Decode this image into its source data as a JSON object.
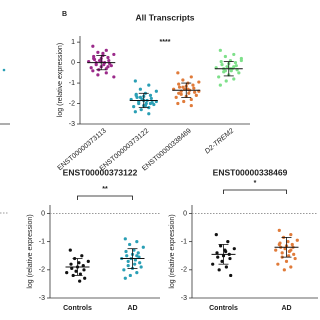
{
  "chart_data": [
    {
      "type": "strip",
      "panel_label": "B",
      "title": "All Transcripts",
      "ylabel": "log (relative expression)",
      "annotation": "****",
      "categories": [
        "ENST00000373113",
        "ENST00000373122",
        "ENST00000338469",
        "D2-TREM2"
      ],
      "colors": [
        "#9b2a8a",
        "#2a9fb5",
        "#e07b3a",
        "#7ee08a"
      ],
      "values": [
        [
          0.8,
          0.6,
          0.5,
          0.4,
          0.35,
          0.3,
          0.25,
          0.2,
          0.15,
          0.1,
          0.1,
          0.05,
          0.0,
          0.0,
          -0.05,
          -0.1,
          -0.1,
          -0.15,
          -0.2,
          -0.25,
          -0.3,
          -0.35,
          -0.4,
          -0.5,
          -0.6,
          -0.7,
          0.45,
          0.2,
          -0.2,
          0.05
        ],
        [
          -0.9,
          -1.1,
          -1.3,
          -1.4,
          -1.5,
          -1.55,
          -1.6,
          -1.65,
          -1.7,
          -1.75,
          -1.8,
          -1.8,
          -1.85,
          -1.9,
          -1.95,
          -2.0,
          -2.0,
          -2.05,
          -2.1,
          -2.15,
          -2.2,
          -2.3,
          -2.4,
          -2.5,
          -1.7,
          -1.9,
          -2.1,
          -1.6,
          -2.0,
          -1.85
        ],
        [
          -0.5,
          -0.7,
          -0.85,
          -0.95,
          -1.0,
          -1.05,
          -1.1,
          -1.15,
          -1.2,
          -1.25,
          -1.3,
          -1.3,
          -1.35,
          -1.4,
          -1.45,
          -1.5,
          -1.55,
          -1.6,
          -1.65,
          -1.7,
          -1.8,
          -1.9,
          -2.0,
          -2.1,
          -1.2,
          -1.4,
          -1.3,
          -1.5
        ],
        [
          0.6,
          0.4,
          0.3,
          0.2,
          0.1,
          0.05,
          0.0,
          -0.05,
          -0.1,
          -0.15,
          -0.2,
          -0.25,
          -0.3,
          -0.3,
          -0.35,
          -0.4,
          -0.45,
          -0.5,
          -0.6,
          -0.7,
          -0.8,
          -0.9,
          -1.1,
          -0.2,
          -0.4,
          0.1,
          -0.3
        ]
      ],
      "means": [
        0.0,
        -1.85,
        -1.35,
        -0.3
      ],
      "sds": [
        0.35,
        0.35,
        0.35,
        0.35
      ],
      "ylim": [
        -3,
        1.3
      ],
      "yticks": [
        1,
        0,
        -1,
        -2,
        -3
      ]
    },
    {
      "type": "strip",
      "title": "ENST00000373122",
      "ylabel": "log (relative expression)",
      "annotation": "**",
      "categories": [
        "Controls",
        "AD"
      ],
      "colors": [
        "#111111",
        "#2a9fb5"
      ],
      "values": [
        [
          -1.3,
          -1.5,
          -1.6,
          -1.7,
          -1.75,
          -1.8,
          -1.85,
          -1.9,
          -1.95,
          -2.0,
          -2.05,
          -2.1,
          -2.15,
          -2.2,
          -2.3,
          -2.4
        ],
        [
          -0.9,
          -1.0,
          -1.1,
          -1.2,
          -1.3,
          -1.35,
          -1.4,
          -1.45,
          -1.5,
          -1.55,
          -1.6,
          -1.6,
          -1.65,
          -1.7,
          -1.75,
          -1.8,
          -1.85,
          -1.9,
          -1.95,
          -2.0,
          -2.1,
          -2.2,
          -2.3,
          -1.5
        ]
      ],
      "means": [
        -1.9,
        -1.6
      ],
      "sds": [
        0.3,
        0.35
      ],
      "ylim": [
        -3,
        0.3
      ],
      "yticks": [
        0,
        -1,
        -2,
        -3
      ]
    },
    {
      "type": "strip",
      "title": "ENST00000338469",
      "ylabel": "log (relative expression)",
      "annotation": "*",
      "categories": [
        "Controls",
        "AD"
      ],
      "colors": [
        "#111111",
        "#e07b3a"
      ],
      "values": [
        [
          -0.75,
          -1.0,
          -1.15,
          -1.25,
          -1.3,
          -1.4,
          -1.45,
          -1.5,
          -1.55,
          -1.6,
          -1.7,
          -1.8,
          -1.9,
          -2.0,
          -2.2,
          -1.35
        ],
        [
          -0.6,
          -0.75,
          -0.85,
          -0.95,
          -1.0,
          -1.05,
          -1.1,
          -1.15,
          -1.2,
          -1.2,
          -1.25,
          -1.3,
          -1.35,
          -1.4,
          -1.45,
          -1.5,
          -1.55,
          -1.6,
          -1.7,
          -1.8,
          -1.9,
          -2.0,
          -1.1,
          -1.3
        ]
      ],
      "means": [
        -1.45,
        -1.2
      ],
      "sds": [
        0.35,
        0.35
      ],
      "ylim": [
        -3,
        0.3
      ],
      "yticks": [
        0,
        -1,
        -2,
        -3
      ]
    }
  ]
}
